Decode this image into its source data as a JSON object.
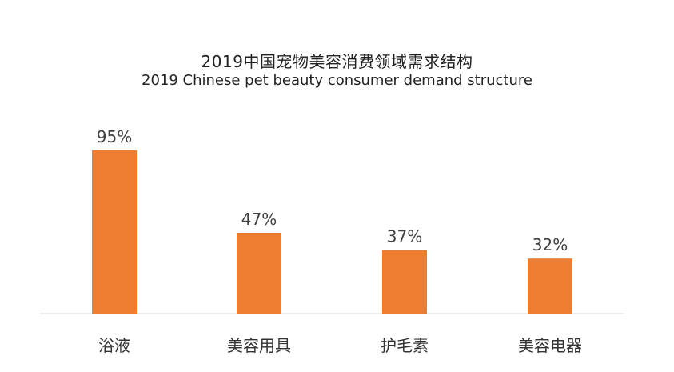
{
  "chart_data": {
    "type": "bar",
    "title": "2019中国宠物美容消费领域需求结构",
    "subtitle": "2019 Chinese pet beauty consumer demand structure",
    "categories": [
      "浴液",
      "美容用具",
      "护毛素",
      "美容电器"
    ],
    "values": [
      95,
      47,
      37,
      32
    ],
    "value_labels": [
      "95%",
      "47%",
      "37%",
      "32%"
    ],
    "ylim": [
      0,
      100
    ],
    "bar_color": "#ED7D31",
    "axis_color": "#D9D9D9",
    "grid": false,
    "legend": "none"
  }
}
